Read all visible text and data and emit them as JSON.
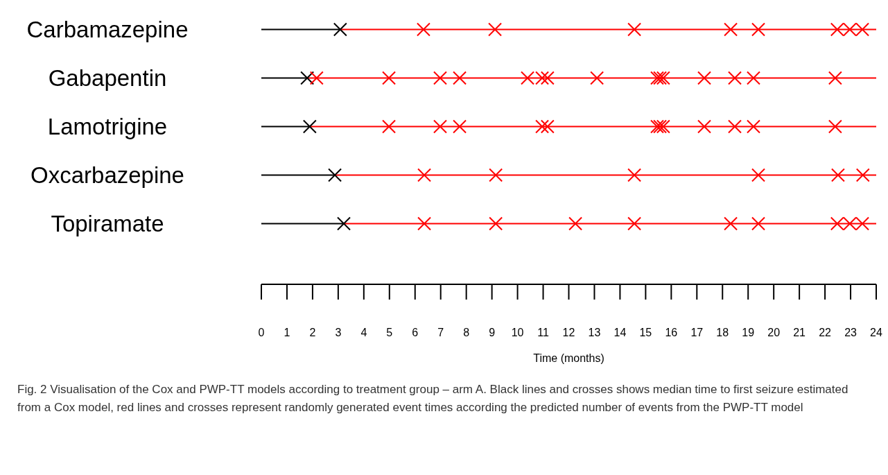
{
  "chart_data": {
    "type": "scatter",
    "orientation": "horizontal",
    "categories": [
      "Carbamazepine",
      "Gabapentin",
      "Lamotrigine",
      "Oxcarbazepine",
      "Topiramate"
    ],
    "xlabel": "Time (months)",
    "xlim": [
      0,
      24
    ],
    "xticks": [
      0,
      1,
      2,
      3,
      4,
      5,
      6,
      7,
      8,
      9,
      10,
      11,
      12,
      13,
      14,
      15,
      16,
      17,
      18,
      19,
      20,
      21,
      22,
      23,
      24
    ],
    "marker": "cross",
    "legend": false,
    "series": [
      {
        "color": "#000000",
        "x": [
          "Carbamazepine",
          "Gabapentin",
          "Lamotrigine",
          "Oxcarbazepine",
          "Topiramate"
        ],
        "values": [
          3.08,
          1.79,
          1.89,
          2.87,
          3.22
        ]
      },
      {
        "color": "#ff0000",
        "x": [
          "Carbamazepine",
          "Carbamazepine",
          "Carbamazepine",
          "Carbamazepine",
          "Carbamazepine",
          "Carbamazepine",
          "Carbamazepine",
          "Carbamazepine",
          "Gabapentin",
          "Gabapentin",
          "Gabapentin",
          "Gabapentin",
          "Gabapentin",
          "Gabapentin",
          "Gabapentin",
          "Gabapentin",
          "Gabapentin",
          "Gabapentin",
          "Gabapentin",
          "Gabapentin",
          "Gabapentin",
          "Gabapentin",
          "Gabapentin",
          "Lamotrigine",
          "Lamotrigine",
          "Lamotrigine",
          "Lamotrigine",
          "Lamotrigine",
          "Lamotrigine",
          "Lamotrigine",
          "Lamotrigine",
          "Lamotrigine",
          "Lamotrigine",
          "Lamotrigine",
          "Lamotrigine",
          "Oxcarbazepine",
          "Oxcarbazepine",
          "Oxcarbazepine",
          "Oxcarbazepine",
          "Oxcarbazepine",
          "Oxcarbazepine",
          "Topiramate",
          "Topiramate",
          "Topiramate",
          "Topiramate",
          "Topiramate",
          "Topiramate",
          "Topiramate",
          "Topiramate",
          "Topiramate"
        ],
        "values": [
          6.33,
          9.12,
          14.56,
          18.32,
          19.4,
          22.48,
          22.97,
          23.46,
          2.16,
          4.98,
          6.98,
          7.74,
          10.39,
          10.96,
          11.17,
          13.1,
          15.45,
          15.56,
          15.69,
          17.29,
          18.48,
          19.21,
          22.4,
          4.98,
          6.98,
          7.74,
          10.96,
          11.17,
          15.45,
          15.56,
          15.69,
          17.29,
          18.48,
          19.21,
          22.4,
          6.36,
          9.15,
          14.56,
          19.4,
          22.51,
          23.48,
          6.36,
          9.15,
          12.26,
          14.56,
          18.32,
          19.4,
          22.48,
          22.97,
          23.46
        ]
      }
    ],
    "annotations": [
      "Fig. 2 Visualisation of the Cox and PWP-TT models according to treatment group – arm A. Black lines and crosses shows median time to first seizure estimated from a Cox model, red lines and crosses represent randomly generated event times according the predicted number of events from the PWP-TT model"
    ]
  }
}
